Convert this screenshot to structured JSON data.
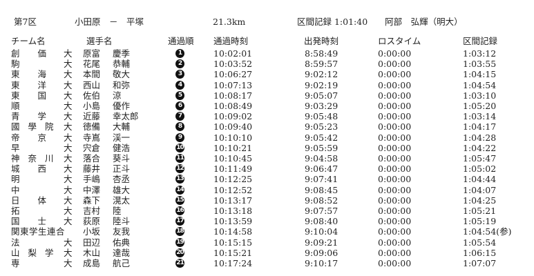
{
  "header": {
    "stage": "第7区",
    "route": "小田原　－　平塚",
    "distance": "21.3km",
    "record": "区間記録 1:01:40　　阿部　弘輝（明大）"
  },
  "columns": {
    "team": "チーム名",
    "runner": "選手名",
    "rank": "通過順",
    "pass_time": "通過時刻",
    "start_time": "出発時刻",
    "loss_time": "ロスタイム",
    "stage_record": "区間記録"
  },
  "rows": [
    {
      "team": "創価",
      "suffix": "大",
      "surname": "原富",
      "given": "慶季",
      "rank": "1",
      "pass": "10:02:01",
      "start": "8:58:49",
      "loss": "0:00:00",
      "record": "1:03:12"
    },
    {
      "team": "駒",
      "suffix": "大",
      "surname": "花尾",
      "given": "恭輔",
      "rank": "2",
      "pass": "10:03:52",
      "start": "8:59:57",
      "loss": "0:00:00",
      "record": "1:03:55"
    },
    {
      "team": "東海",
      "suffix": "大",
      "surname": "本間",
      "given": "敬大",
      "rank": "3",
      "pass": "10:06:27",
      "start": "9:02:12",
      "loss": "0:00:00",
      "record": "1:04:15"
    },
    {
      "team": "東洋",
      "suffix": "大",
      "surname": "西山",
      "given": "和弥",
      "rank": "4",
      "pass": "10:07:13",
      "start": "9:02:19",
      "loss": "0:00:00",
      "record": "1:04:54"
    },
    {
      "team": "東国",
      "suffix": "大",
      "surname": "佐伯",
      "given": "涼",
      "rank": "5",
      "pass": "10:08:17",
      "start": "9:05:07",
      "loss": "0:00:00",
      "record": "1:03:10"
    },
    {
      "team": "順",
      "suffix": "大",
      "surname": "小島",
      "given": "優作",
      "rank": "6",
      "pass": "10:08:49",
      "start": "9:03:29",
      "loss": "0:00:00",
      "record": "1:05:20"
    },
    {
      "team": "青学",
      "suffix": "大",
      "surname": "近藤",
      "given": "幸太郎",
      "rank": "7",
      "pass": "10:09:02",
      "start": "9:05:48",
      "loss": "0:00:00",
      "record": "1:03:14"
    },
    {
      "team": "國學院",
      "suffix": "大",
      "surname": "徳備",
      "given": "大輔",
      "rank": "8",
      "pass": "10:09:40",
      "start": "9:05:23",
      "loss": "0:00:00",
      "record": "1:04:17"
    },
    {
      "team": "帝京",
      "suffix": "大",
      "surname": "寺嶌",
      "given": "渓一",
      "rank": "9",
      "pass": "10:10:10",
      "start": "9:05:42",
      "loss": "0:00:00",
      "record": "1:04:28"
    },
    {
      "team": "早",
      "suffix": "大",
      "surname": "宍倉",
      "given": "健浩",
      "rank": "10",
      "pass": "10:10:21",
      "start": "9:05:59",
      "loss": "0:00:00",
      "record": "1:04:22"
    },
    {
      "team": "神奈川",
      "suffix": "大",
      "surname": "落合",
      "given": "葵斗",
      "rank": "11",
      "pass": "10:10:45",
      "start": "9:04:58",
      "loss": "0:00:00",
      "record": "1:05:47"
    },
    {
      "team": "城西",
      "suffix": "大",
      "surname": "藤井",
      "given": "正斗",
      "rank": "12",
      "pass": "10:11:49",
      "start": "9:06:47",
      "loss": "0:00:00",
      "record": "1:05:02"
    },
    {
      "team": "明",
      "suffix": "大",
      "surname": "手嶋",
      "given": "杏丞",
      "rank": "13",
      "pass": "10:12:25",
      "start": "9:07:41",
      "loss": "0:00:00",
      "record": "1:04:44"
    },
    {
      "team": "中",
      "suffix": "大",
      "surname": "中澤",
      "given": "雄大",
      "rank": "14",
      "pass": "10:12:52",
      "start": "9:08:45",
      "loss": "0:00:00",
      "record": "1:04:07"
    },
    {
      "team": "日体",
      "suffix": "大",
      "surname": "森下",
      "given": "滉太",
      "rank": "15",
      "pass": "10:13:17",
      "start": "9:08:52",
      "loss": "0:00:00",
      "record": "1:04:25"
    },
    {
      "team": "拓",
      "suffix": "大",
      "surname": "吉村",
      "given": "陸",
      "rank": "16",
      "pass": "10:13:18",
      "start": "9:07:57",
      "loss": "0:00:00",
      "record": "1:05:21"
    },
    {
      "team": "国士",
      "suffix": "大",
      "surname": "荻原",
      "given": "陸斗",
      "rank": "17",
      "pass": "10:13:59",
      "start": "9:08:40",
      "loss": "0:00:00",
      "record": "1:05:19"
    },
    {
      "team": "関東学生連合",
      "suffix": "",
      "surname": "小坂",
      "given": "友我",
      "rank": "18",
      "pass": "10:14:58",
      "start": "9:10:04",
      "loss": "0:00:00",
      "record": "1:04:54(参)"
    },
    {
      "team": "法",
      "suffix": "大",
      "surname": "田辺",
      "given": "佑典",
      "rank": "19",
      "pass": "10:15:15",
      "start": "9:09:21",
      "loss": "0:00:00",
      "record": "1:05:54"
    },
    {
      "team": "山梨学",
      "suffix": "大",
      "surname": "木山",
      "given": "達哉",
      "rank": "20",
      "pass": "10:15:21",
      "start": "9:09:06",
      "loss": "0:00:00",
      "record": "1:06:15"
    },
    {
      "team": "専",
      "suffix": "大",
      "surname": "成島",
      "given": "航己",
      "rank": "21",
      "pass": "10:17:24",
      "start": "9:10:17",
      "loss": "0:00:00",
      "record": "1:07:07"
    }
  ]
}
